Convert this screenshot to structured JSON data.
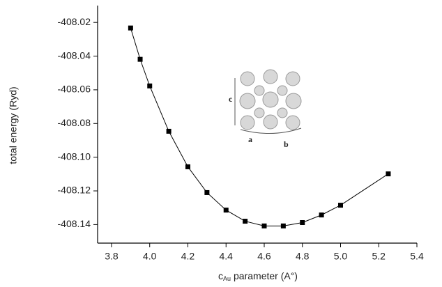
{
  "chart_data": {
    "type": "line",
    "x_label": [
      "c",
      "Au",
      "parameter  (A°)"
    ],
    "y_label": "total energy (Ryd)",
    "annotations": [
      "c",
      "a",
      "b"
    ],
    "x": [
      3.9,
      3.95,
      4.0,
      4.1,
      4.2,
      4.3,
      4.4,
      4.5,
      4.6,
      4.7,
      4.8,
      4.9,
      5.0,
      5.25
    ],
    "series": [
      {
        "color": "#000000",
        "values": [
          -408.0233,
          -408.0419,
          -408.0577,
          -408.0846,
          -408.1057,
          -408.121,
          -408.1314,
          -408.138,
          -408.1408,
          -408.1408,
          -408.1388,
          -408.1343,
          -408.1285,
          -408.1099
        ]
      }
    ],
    "xlim": [
      3.727,
      5.4
    ],
    "xticks": [
      3.8,
      {
        "value": 4.0,
        "label": "4.0"
      },
      4.2,
      4.4,
      4.6,
      4.8,
      {
        "value": 5.0,
        "label": "5.0"
      },
      5.2,
      5.4
    ],
    "ylim": [
      -408.151,
      -408.01
    ],
    "yticks": [
      -408.02,
      -408.04,
      -408.06,
      -408.08,
      {
        "value": -408.1,
        "label": "-408.10"
      },
      -408.12,
      -408.14
    ]
  }
}
